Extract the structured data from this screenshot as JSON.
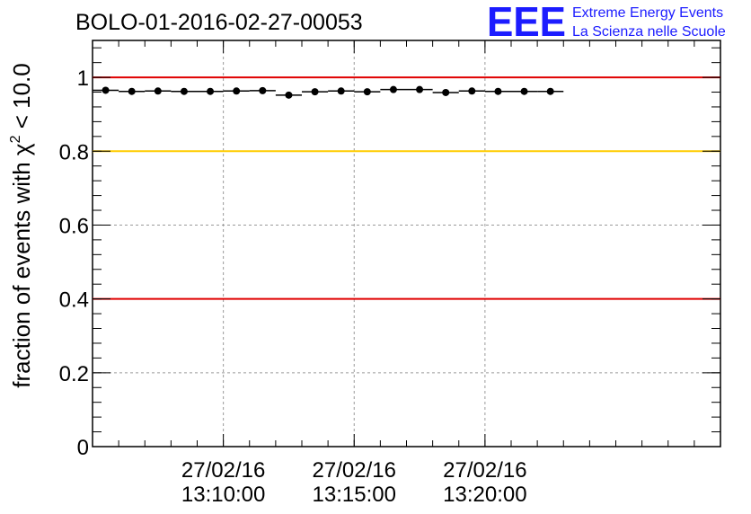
{
  "logo": {
    "letters": "EEE",
    "line1": "Extreme Energy Events",
    "line2": "La Scienza nelle Scuole",
    "color": "#1c1cff"
  },
  "chart_data": {
    "type": "scatter",
    "title": "BOLO-01-2016-02-27-00053",
    "ylabel_prefix": "fraction of events with ",
    "ylabel_symbol": "χ",
    "ylabel_superscript": "2",
    "ylabel_suffix": " < 10.0",
    "ylim": [
      0,
      1.1
    ],
    "yticks": [
      "0",
      "0.2",
      "0.4",
      "0.6",
      "0.8",
      "1"
    ],
    "ytick_values": [
      0,
      0.2,
      0.4,
      0.6,
      0.8,
      1.0
    ],
    "xlim": [
      "27/02/16 13:05:00",
      "27/02/16 13:29:00"
    ],
    "xticks": [
      {
        "date": "27/02/16",
        "time": "13:10:00"
      },
      {
        "date": "27/02/16",
        "time": "13:15:00"
      },
      {
        "date": "27/02/16",
        "time": "13:20:00"
      }
    ],
    "grid": true,
    "x": [
      "13:05:30",
      "13:06:30",
      "13:07:30",
      "13:08:30",
      "13:09:30",
      "13:10:30",
      "13:11:30",
      "13:12:30",
      "13:13:30",
      "13:14:30",
      "13:15:30",
      "13:16:30",
      "13:17:30",
      "13:18:30",
      "13:19:30",
      "13:20:30",
      "13:21:30",
      "13:22:30"
    ],
    "x_errors_seconds": 30,
    "values": [
      0.965,
      0.962,
      0.963,
      0.962,
      0.962,
      0.963,
      0.964,
      0.952,
      0.961,
      0.963,
      0.961,
      0.967,
      0.967,
      0.959,
      0.963,
      0.962,
      0.962,
      0.962
    ],
    "reference_lines": [
      {
        "y": 1.0,
        "color": "#e00000"
      },
      {
        "y": 0.8,
        "color": "#ffcc00"
      },
      {
        "y": 0.4,
        "color": "#e00000"
      }
    ]
  }
}
